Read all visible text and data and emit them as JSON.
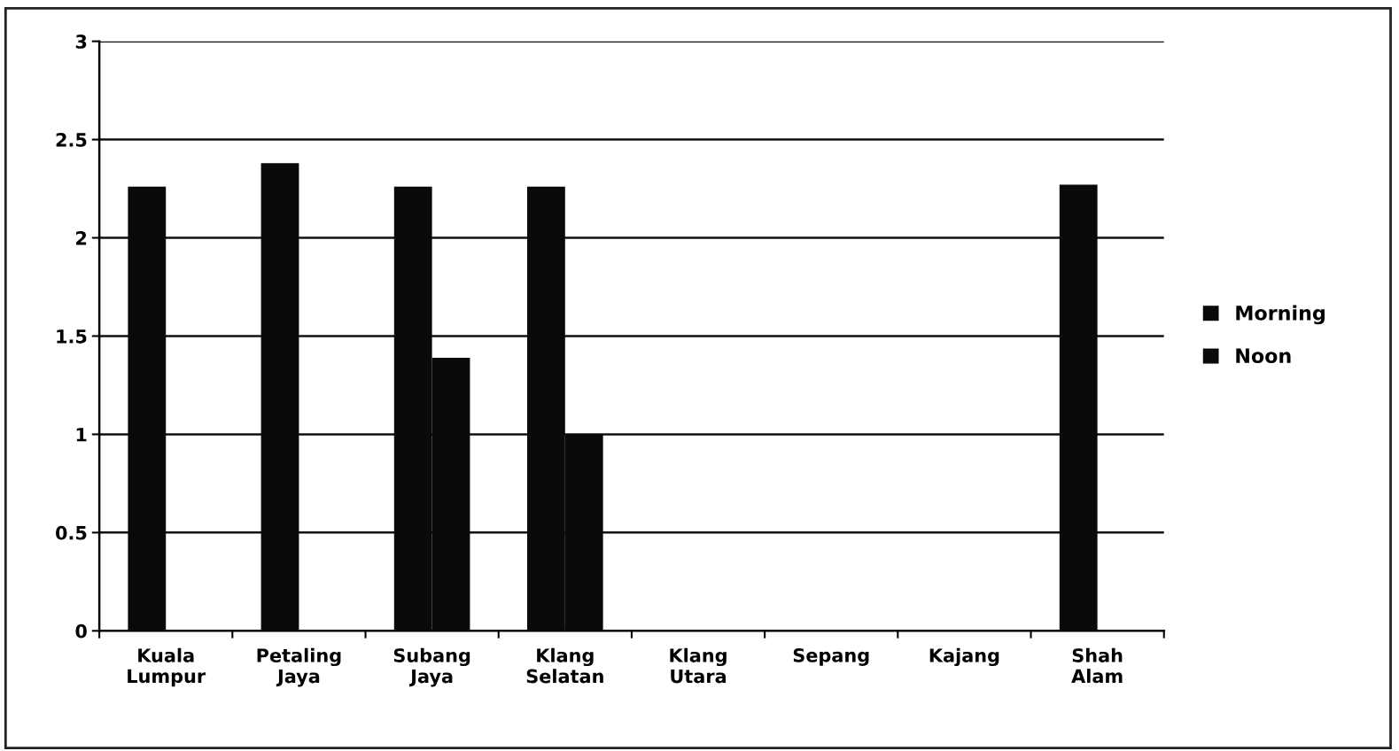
{
  "chart_data": {
    "type": "bar",
    "categories": [
      "Kuala\nLumpur",
      "Petaling\nJaya",
      "Subang\nJaya",
      "Klang\nSelatan",
      "Klang\nUtara",
      "Sepang",
      "Kajang",
      "Shah\nAlam"
    ],
    "series": [
      {
        "name": "Morning",
        "color": "#0a0a0a",
        "values": [
          2.26,
          2.38,
          2.26,
          2.26,
          null,
          null,
          null,
          2.27
        ]
      },
      {
        "name": "Noon",
        "color": "#0a0a0a",
        "values": [
          null,
          null,
          1.39,
          1.0,
          null,
          null,
          null,
          null
        ]
      }
    ],
    "ylim": [
      0,
      3
    ],
    "yticks": [
      0,
      0.5,
      1,
      1.5,
      2,
      2.5,
      3
    ],
    "grid": "y",
    "legend": "right"
  }
}
